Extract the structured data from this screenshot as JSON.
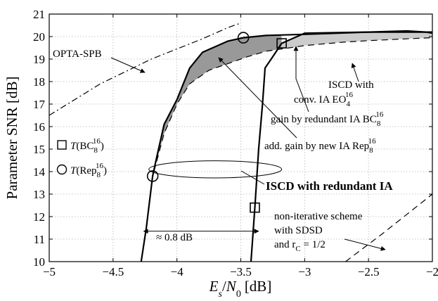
{
  "chart_data": {
    "type": "line",
    "xlabel": "E_s/N_0 [dB]",
    "ylabel": "Parameter SNR [dB]",
    "xlim": [
      -5,
      -2
    ],
    "ylim": [
      10,
      21
    ],
    "xticks": [
      -5,
      -4.5,
      -4,
      -3.5,
      -3,
      -2.5,
      -2
    ],
    "xtick_labels": [
      "−5",
      "−4.5",
      "−4",
      "−3.5",
      "−3",
      "−2.5",
      "−2"
    ],
    "yticks": [
      10,
      11,
      12,
      13,
      14,
      15,
      16,
      17,
      18,
      19,
      20,
      21
    ],
    "ytick_labels": [
      "10",
      "11",
      "12",
      "13",
      "14",
      "15",
      "16",
      "17",
      "18",
      "19",
      "20",
      "21"
    ],
    "grid": true,
    "series": [
      {
        "key": "opta",
        "name": "OPTA-SPB",
        "style": "dashdot",
        "color": "#000000",
        "x": [
          -5,
          -4.6,
          -4.2,
          -3.8,
          -3.6,
          -3.5
        ],
        "y": [
          16.5,
          17.9,
          19.0,
          19.9,
          20.4,
          20.6
        ]
      },
      {
        "key": "conv",
        "name": "ISCD with conv. IA EO_4^16",
        "style": "dashed",
        "color": "#000000",
        "x": [
          -4.18,
          -4.1,
          -4.0,
          -3.9,
          -3.75,
          -3.6,
          -3.45,
          -3.3,
          -3.0,
          -2.7,
          -2.5,
          -2.2,
          -2.0
        ],
        "y": [
          14.0,
          15.7,
          17.0,
          17.9,
          18.5,
          18.8,
          19.1,
          19.35,
          19.6,
          19.75,
          19.82,
          19.9,
          19.95
        ]
      },
      {
        "key": "bc",
        "name": "T(BC_8^16)",
        "style": "solid",
        "color": "#000000",
        "x": [
          -3.42,
          -3.39,
          -3.36,
          -3.33,
          -3.31,
          -3.25,
          -3.18,
          -3.0,
          -2.5,
          -2.0
        ],
        "y": [
          10.0,
          12.4,
          15.0,
          17.0,
          18.6,
          19.1,
          19.7,
          20.15,
          20.2,
          20.2
        ]
      },
      {
        "key": "rep",
        "name": "T(Rep_8^16)",
        "style": "solid",
        "color": "#000000",
        "x": [
          -4.28,
          -4.24,
          -4.19,
          -4.16,
          -4.1,
          -4.0,
          -3.9,
          -3.8,
          -3.7,
          -3.6,
          -3.48,
          -3.3,
          -3.0,
          -2.5,
          -2.2,
          -2.05,
          -2.0
        ],
        "y": [
          10.0,
          11.5,
          13.8,
          14.6,
          16.1,
          17.2,
          18.6,
          19.3,
          19.55,
          19.8,
          19.95,
          20.05,
          20.1,
          20.2,
          20.25,
          20.2,
          20.15
        ]
      },
      {
        "key": "noniter",
        "name": "non-iterative scheme with SDSD and r_C = 1/2",
        "style": "dashed",
        "color": "#000000",
        "x": [
          -2.68,
          -2.4,
          -2.2,
          -2.0
        ],
        "y": [
          10.0,
          11.2,
          12.1,
          13.0
        ]
      }
    ],
    "shade_redundant_ia": {
      "color": "#999999",
      "x_from": -4.19,
      "x_to": -3.18
    },
    "shade_new_ia": {
      "color": "#cccccc",
      "x_from": -3.18,
      "x_to": -2.0
    },
    "markers": [
      {
        "key": "rep_marker",
        "shape": "circle",
        "x": [
          -4.19,
          -3.48
        ],
        "y": [
          13.8,
          19.95
        ]
      },
      {
        "key": "bc_marker",
        "shape": "square",
        "x": [
          -3.39,
          -3.18
        ],
        "y": [
          12.4,
          19.7
        ]
      }
    ],
    "ellipse": {
      "cx": -3.7,
      "cy": 14.1,
      "rx": 0.52,
      "ry": 0.38
    },
    "gap_arrow": {
      "x1": -4.26,
      "x2": -3.36,
      "y": 11.35
    },
    "legend": {
      "square_label": "T(BC",
      "circle_label": "T(Rep",
      "sub": "8",
      "sup": "16"
    },
    "annotations": {
      "opta": "OPTA-SPB",
      "conv_line1": "ISCD with",
      "conv_line2": "conv. IA EO",
      "conv_sub": "4",
      "conv_sup": "16",
      "gain_red": "gain by redundant IA BC",
      "gain_red_sub": "8",
      "gain_red_sup": "16",
      "add_gain": "add. gain by new IA Rep",
      "add_gain_sub": "8",
      "add_gain_sup": "16",
      "iscd_red": "ISCD with redundant IA",
      "noniter_line1": "non-iterative scheme",
      "noniter_line2": "with SDSD",
      "noniter_line3a": "and r",
      "noniter_line3_sub": "C",
      "noniter_line3b": " = 1/2",
      "gap": "≈ 0.8 dB"
    }
  }
}
